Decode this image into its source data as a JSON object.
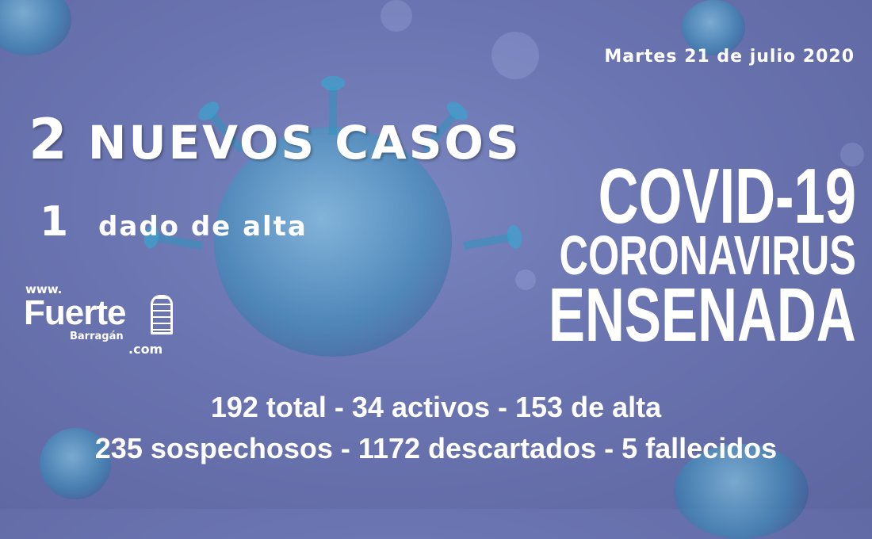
{
  "date": "Martes 21 de julio 2020",
  "headline": {
    "number": "2",
    "text": "NUEVOS CASOS"
  },
  "subheadline": {
    "number": "1",
    "text": "dado de alta"
  },
  "title": {
    "line1": "COVID-19",
    "line2": "CORONAVIRUS",
    "line3": "ENSENADA"
  },
  "stats": {
    "line1": "192 total - 34 activos - 153 de alta",
    "line2": "235 sospechosos - 1172 descartados - 5 fallecidos"
  },
  "logo": {
    "www": "www.",
    "name": "Fuerte",
    "sub": "Barragán",
    "tld": ".com"
  },
  "colors": {
    "background": "#6a74b0",
    "virus": "#2e9cc0",
    "text": "#ffffff"
  }
}
